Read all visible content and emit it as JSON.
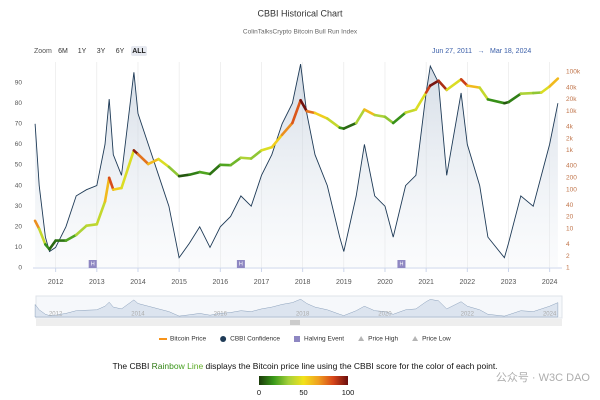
{
  "chart_data": {
    "type": "line",
    "title": "CBBI Historical Chart",
    "subtitle": "ColinTalksCrypto Bitcoin Bull Run Index",
    "zoom": {
      "label": "Zoom",
      "buttons": [
        "6M",
        "1Y",
        "3Y",
        "6Y",
        "ALL"
      ],
      "active": 4
    },
    "range": {
      "from": "Jun 27, 2011",
      "arrow": "→",
      "to": "Mar 18, 2024"
    },
    "x": [
      2011.5,
      2011.6,
      2011.75,
      2011.85,
      2012.0,
      2012.25,
      2012.5,
      2012.75,
      2013.0,
      2013.2,
      2013.3,
      2013.4,
      2013.6,
      2013.9,
      2014.0,
      2014.25,
      2014.5,
      2014.75,
      2015.0,
      2015.25,
      2015.5,
      2015.75,
      2016.0,
      2016.25,
      2016.5,
      2016.75,
      2017.0,
      2017.25,
      2017.5,
      2017.75,
      2017.95,
      2018.1,
      2018.3,
      2018.6,
      2018.9,
      2019.0,
      2019.3,
      2019.5,
      2019.75,
      2020.0,
      2020.2,
      2020.5,
      2020.75,
      2021.0,
      2021.1,
      2021.3,
      2021.5,
      2021.85,
      2022.0,
      2022.3,
      2022.5,
      2022.9,
      2023.0,
      2023.3,
      2023.6,
      2023.8,
      2024.0,
      2024.2
    ],
    "series": [
      {
        "name": "Bitcoin Price",
        "color": "#f7931a",
        "axis": "y2",
        "values": [
          16,
          10,
          4,
          3,
          5,
          5,
          7,
          12,
          13,
          50,
          200,
          100,
          110,
          1000,
          800,
          450,
          600,
          380,
          220,
          240,
          280,
          250,
          430,
          420,
          650,
          620,
          1000,
          1200,
          2500,
          5000,
          19000,
          10000,
          9000,
          6500,
          3800,
          3600,
          5000,
          11000,
          8000,
          7200,
          5000,
          9200,
          11000,
          30000,
          45000,
          60000,
          35000,
          65000,
          45000,
          40000,
          20000,
          16000,
          17000,
          28000,
          29000,
          30000,
          43000,
          68000
        ]
      },
      {
        "name": "CBBI Confidence",
        "color": "#1f3b57",
        "values": [
          70,
          40,
          15,
          8,
          10,
          20,
          35,
          38,
          40,
          60,
          82,
          55,
          45,
          95,
          75,
          60,
          45,
          30,
          5,
          12,
          20,
          10,
          20,
          25,
          35,
          30,
          45,
          55,
          70,
          80,
          99,
          75,
          55,
          40,
          15,
          8,
          35,
          60,
          35,
          30,
          15,
          40,
          45,
          85,
          98,
          90,
          45,
          85,
          60,
          40,
          15,
          5,
          12,
          35,
          30,
          45,
          60,
          80
        ]
      }
    ],
    "halving_event": {
      "name": "Halving Event",
      "label": "H",
      "color": "#8e87c2",
      "x": [
        2012.9,
        2016.5,
        2020.4
      ]
    },
    "markers": [
      {
        "name": "Price High",
        "color": "#b5b5b5"
      },
      {
        "name": "Price Low",
        "color": "#b5b5b5"
      }
    ],
    "xlim": [
      2011.45,
      2024.3
    ],
    "xticks": [
      2012,
      2013,
      2014,
      2015,
      2016,
      2017,
      2018,
      2019,
      2020,
      2021,
      2022,
      2023,
      2024
    ],
    "ylim": [
      0,
      100
    ],
    "yticks": [
      0,
      10,
      20,
      30,
      40,
      50,
      60,
      70,
      80,
      90
    ],
    "y2lim": [
      1,
      180000
    ],
    "y2scale": "log",
    "y2ticks": [
      1,
      2,
      4,
      10,
      20,
      40,
      100,
      200,
      400,
      {
        "value": 1000,
        "label": "1k"
      },
      {
        "value": 2000,
        "label": "2k"
      },
      {
        "value": 4000,
        "label": "4k"
      },
      {
        "value": 10000,
        "label": "10k"
      },
      {
        "value": 20000,
        "label": "20k"
      },
      {
        "value": 40000,
        "label": "40k"
      },
      {
        "value": 100000,
        "label": "100k"
      }
    ],
    "grid": true,
    "caption": [
      "The CBBI ",
      "Rainbow Line",
      " displays the Bitcoin price line using the CBBI score for the color of each point."
    ],
    "colorbar": {
      "ticks": [
        0,
        50,
        100
      ],
      "colors": [
        "#1b3a0a",
        "#3a9a1a",
        "#a6d13a",
        "#f2e21a",
        "#f0a020",
        "#d6451a",
        "#6a0d0d"
      ]
    },
    "watermark": "公众号 · W3C DAO"
  }
}
